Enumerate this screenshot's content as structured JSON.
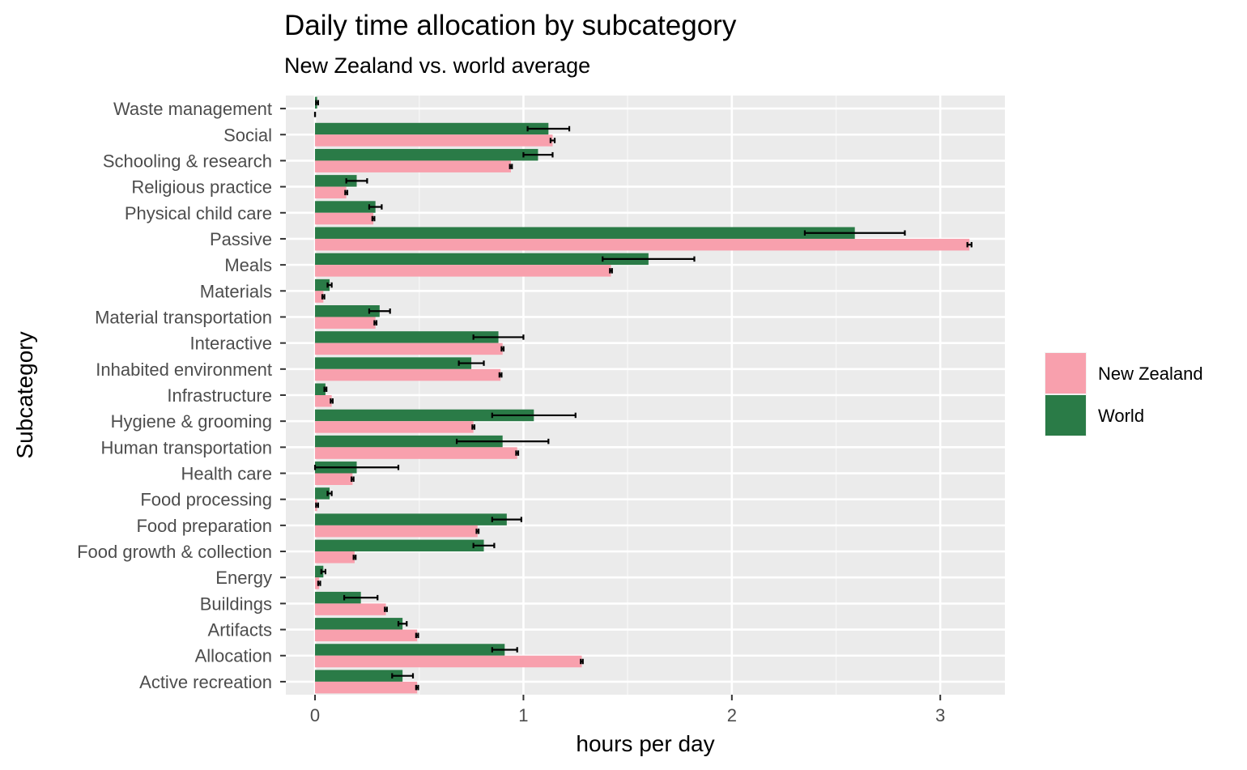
{
  "chart_data": {
    "type": "bar",
    "orientation": "horizontal",
    "title": "Daily time allocation by subcategory",
    "subtitle": "New Zealand vs. world average",
    "xlabel": "hours per day",
    "ylabel": "Subcategory",
    "xlim": [
      -0.14,
      3.31
    ],
    "xticks": [
      0,
      1,
      2,
      3
    ],
    "grid": true,
    "legend_position": "right",
    "categories": [
      "Waste management",
      "Social",
      "Schooling & research",
      "Religious practice",
      "Physical child care",
      "Passive",
      "Meals",
      "Materials",
      "Material transportation",
      "Interactive",
      "Inhabited environment",
      "Infrastructure",
      "Hygiene & grooming",
      "Human transportation",
      "Health care",
      "Food processing",
      "Food preparation",
      "Food growth & collection",
      "Energy",
      "Buildings",
      "Artifacts",
      "Allocation",
      "Active recreation"
    ],
    "series": [
      {
        "name": "New Zealand",
        "color": "#F8A0AD",
        "values": [
          0.0,
          1.14,
          0.94,
          0.15,
          0.28,
          3.14,
          1.42,
          0.04,
          0.29,
          0.9,
          0.89,
          0.08,
          0.76,
          0.97,
          0.18,
          0.01,
          0.78,
          0.19,
          0.02,
          0.34,
          0.49,
          1.28,
          0.49
        ],
        "error_low": [
          0.0,
          1.13,
          0.935,
          0.145,
          0.275,
          3.13,
          1.415,
          0.035,
          0.285,
          0.895,
          0.885,
          0.075,
          0.755,
          0.965,
          0.175,
          0.005,
          0.775,
          0.185,
          0.015,
          0.335,
          0.485,
          1.275,
          0.485
        ],
        "error_high": [
          0.0,
          1.15,
          0.945,
          0.155,
          0.285,
          3.15,
          1.425,
          0.045,
          0.295,
          0.905,
          0.895,
          0.085,
          0.765,
          0.975,
          0.185,
          0.015,
          0.785,
          0.195,
          0.025,
          0.345,
          0.495,
          1.285,
          0.495
        ]
      },
      {
        "name": "World",
        "color": "#2A7B47",
        "values": [
          0.01,
          1.12,
          1.07,
          0.2,
          0.29,
          2.59,
          1.6,
          0.07,
          0.31,
          0.88,
          0.75,
          0.05,
          1.05,
          0.9,
          0.2,
          0.07,
          0.92,
          0.81,
          0.04,
          0.22,
          0.42,
          0.91,
          0.42
        ],
        "error_low": [
          0.005,
          1.02,
          1.0,
          0.15,
          0.26,
          2.35,
          1.38,
          0.06,
          0.26,
          0.76,
          0.69,
          0.045,
          0.85,
          0.68,
          0.0,
          0.06,
          0.85,
          0.76,
          0.03,
          0.14,
          0.4,
          0.85,
          0.37
        ],
        "error_high": [
          0.015,
          1.22,
          1.14,
          0.25,
          0.32,
          2.83,
          1.82,
          0.08,
          0.36,
          1.0,
          0.81,
          0.055,
          1.25,
          1.12,
          0.4,
          0.08,
          0.99,
          0.86,
          0.05,
          0.3,
          0.44,
          0.97,
          0.47
        ]
      }
    ]
  }
}
